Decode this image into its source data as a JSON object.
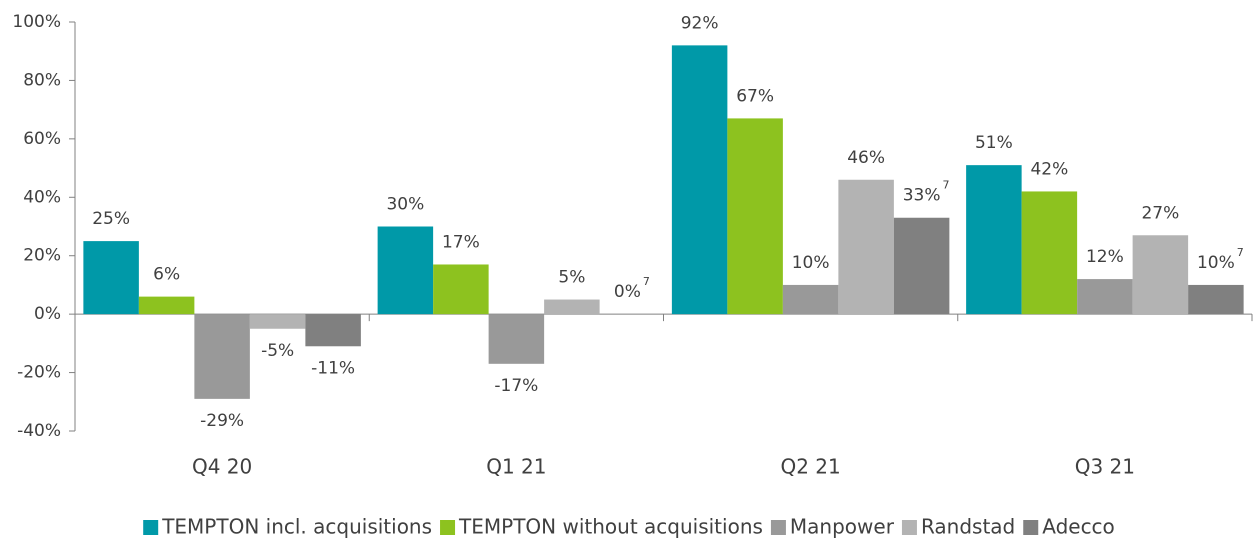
{
  "chart_data": {
    "type": "bar",
    "categories": [
      "Q4 20",
      "Q1 21",
      "Q2 21",
      "Q3 21"
    ],
    "series": [
      {
        "name": "TEMPTON incl. acquisitions",
        "color": "#0099a8",
        "values": [
          25,
          30,
          92,
          51
        ],
        "value_labels": [
          "25%",
          "30%",
          "92%",
          "51%"
        ]
      },
      {
        "name": "TEMPTON without acquisitions",
        "color": "#8dc21f",
        "values": [
          6,
          17,
          67,
          42
        ],
        "value_labels": [
          "6%",
          "17%",
          "67%",
          "42%"
        ]
      },
      {
        "name": "Manpower",
        "color": "#999999",
        "values": [
          -29,
          -17,
          10,
          12
        ],
        "value_labels": [
          "-29%",
          "-17%",
          "10%",
          "12%"
        ]
      },
      {
        "name": "Randstad",
        "color": "#b3b3b3",
        "values": [
          -5,
          5,
          46,
          27
        ],
        "value_labels": [
          "-5%",
          "5%",
          "46%",
          "27%"
        ]
      },
      {
        "name": "Adecco",
        "color": "#808080",
        "values": [
          -11,
          0,
          33,
          10
        ],
        "value_labels": [
          "-11%",
          "0%",
          "33%",
          "10%"
        ],
        "value_footnotes": [
          null,
          "7",
          "7",
          "7"
        ]
      }
    ],
    "ylim": [
      -40,
      100
    ],
    "yticks": [
      {
        "value": -40,
        "label": "-40%"
      },
      {
        "value": -20,
        "label": "-20%"
      },
      {
        "value": 0,
        "label": "0%"
      },
      {
        "value": 20,
        "label": "20%"
      },
      {
        "value": 40,
        "label": "40%"
      },
      {
        "value": 60,
        "label": "60%"
      },
      {
        "value": 80,
        "label": "80%"
      },
      {
        "value": 100,
        "label": "100%"
      }
    ],
    "legend": "bottom"
  }
}
